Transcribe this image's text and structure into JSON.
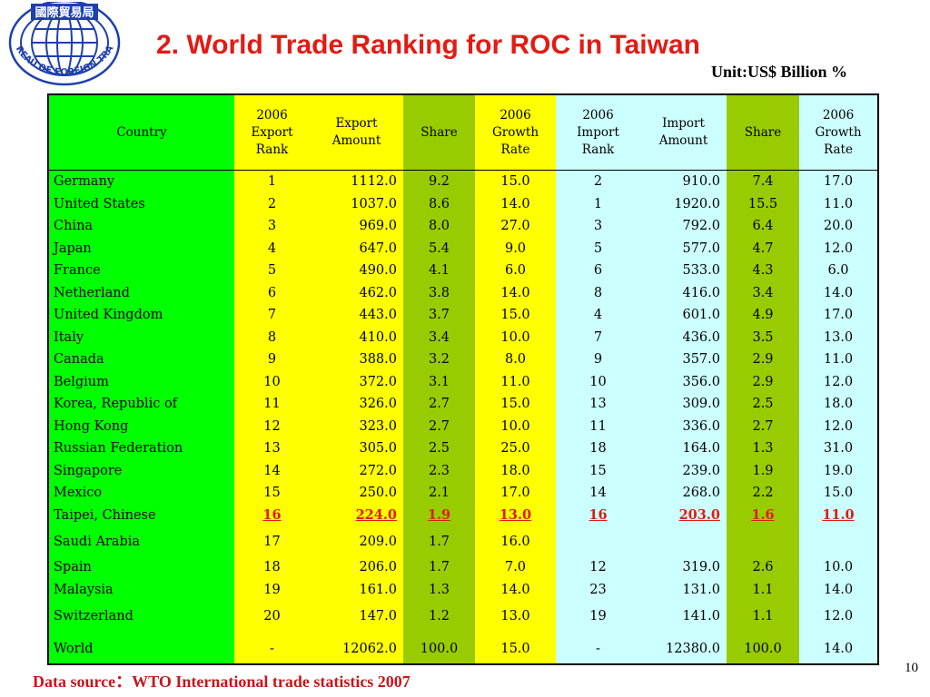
{
  "header": {
    "logo_text_top": "國際貿易局",
    "logo_text_ring": "BUREAU OF FOREIGN TRADE",
    "title": "2. World Trade Ranking for ROC in Taiwan",
    "unit": "Unit:US$ Billion %"
  },
  "colors": {
    "title": "#e31b14",
    "country_col": "#00ff00",
    "export_cols": "#ffff00",
    "share_cols": "#99cc00",
    "import_cols": "#ccffff",
    "highlight_text": "#e31b14",
    "footer": "#c8151b",
    "logo_blue": "#1f3faf"
  },
  "table": {
    "columns": [
      "Country",
      "2006 Export Rank",
      "Export Amount",
      "Share",
      "2006 Growth Rate",
      "2006 Import Rank",
      "Import Amount",
      "Share",
      "2006 Growth Rate"
    ],
    "rows": [
      [
        "Germany",
        "1",
        "1112.0",
        "9.2",
        "15.0",
        "2",
        "910.0",
        "7.4",
        "17.0"
      ],
      [
        "United States",
        "2",
        "1037.0",
        "8.6",
        "14.0",
        "1",
        "1920.0",
        "15.5",
        "11.0"
      ],
      [
        "China",
        "3",
        "969.0",
        "8.0",
        "27.0",
        "3",
        "792.0",
        "6.4",
        "20.0"
      ],
      [
        "Japan",
        "4",
        "647.0",
        "5.4",
        "9.0",
        "5",
        "577.0",
        "4.7",
        "12.0"
      ],
      [
        "France",
        "5",
        "490.0",
        "4.1",
        "6.0",
        "6",
        "533.0",
        "4.3",
        "6.0"
      ],
      [
        "Netherland",
        "6",
        "462.0",
        "3.8",
        "14.0",
        "8",
        "416.0",
        "3.4",
        "14.0"
      ],
      [
        "United Kingdom",
        "7",
        "443.0",
        "3.7",
        "15.0",
        "4",
        "601.0",
        "4.9",
        "17.0"
      ],
      [
        "Italy",
        "8",
        "410.0",
        "3.4",
        "10.0",
        "7",
        "436.0",
        "3.5",
        "13.0"
      ],
      [
        "Canada",
        "9",
        "388.0",
        "3.2",
        "8.0",
        "9",
        "357.0",
        "2.9",
        "11.0"
      ],
      [
        "Belgium",
        "10",
        "372.0",
        "3.1",
        "11.0",
        "10",
        "356.0",
        "2.9",
        "12.0"
      ],
      [
        "Korea, Republic of",
        "11",
        "326.0",
        "2.7",
        "15.0",
        "13",
        "309.0",
        "2.5",
        "18.0"
      ],
      [
        "Hong Kong",
        "12",
        "323.0",
        "2.7",
        "10.0",
        "11",
        "336.0",
        "2.7",
        "12.0"
      ],
      [
        "Russian Federation",
        "13",
        "305.0",
        "2.5",
        "25.0",
        "18",
        "164.0",
        "1.3",
        "31.0"
      ],
      [
        "Singapore",
        "14",
        "272.0",
        "2.3",
        "18.0",
        "15",
        "239.0",
        "1.9",
        "19.0"
      ],
      [
        "Mexico",
        "15",
        "250.0",
        "2.1",
        "17.0",
        "14",
        "268.0",
        "2.2",
        "15.0"
      ],
      [
        "Taipei, Chinese",
        "16",
        "224.0",
        "1.9",
        "13.0",
        "16",
        "203.0",
        "1.6",
        "11.0"
      ],
      [
        "Saudi Arabia",
        "17",
        "209.0",
        "1.7",
        "16.0",
        "",
        "",
        "",
        ""
      ],
      [
        "Spain",
        "18",
        "206.0",
        "1.7",
        "7.0",
        "12",
        "319.0",
        "2.6",
        "10.0"
      ],
      [
        "Malaysia",
        "19",
        "161.0",
        "1.3",
        "14.0",
        "23",
        "131.0",
        "1.1",
        "14.0"
      ],
      [
        "Switzerland",
        "20",
        "147.0",
        "1.2",
        "13.0",
        "19",
        "141.0",
        "1.1",
        "12.0"
      ],
      [
        "World",
        "-",
        "12062.0",
        "100.0",
        "15.0",
        "-",
        "12380.0",
        "100.0",
        "14.0"
      ]
    ],
    "highlight_row": "Taipei, Chinese"
  },
  "footer": {
    "source": "Data source：WTO  International trade statistics 2007",
    "page_number": "10"
  }
}
